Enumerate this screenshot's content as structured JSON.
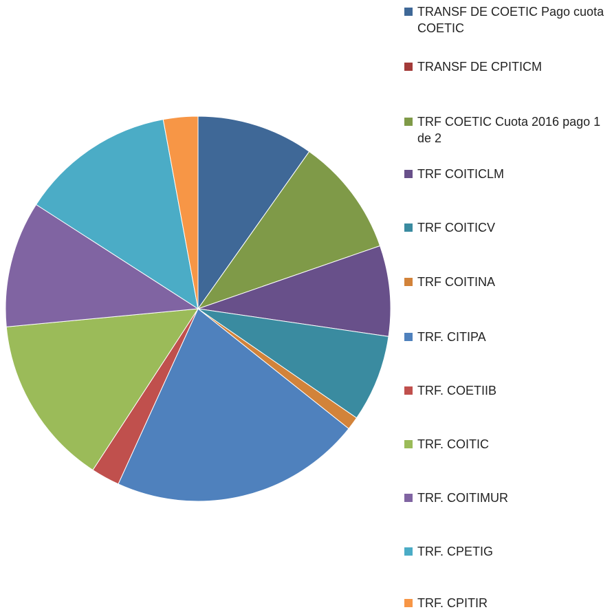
{
  "chart_data": {
    "type": "pie",
    "categories": [
      "TRANSF DE COETIC Pago cuota COETIC",
      "TRANSF DE CPITICM",
      "TRF COETIC Cuota 2016 pago 1 de 2",
      "TRF COITICLM",
      "TRF COITICV",
      "TRF COITINA",
      "TRF. CITIPA",
      "TRF. COETIIB",
      "TRF. COITIC",
      "TRF. COITIMUR",
      "TRF. CPETIG",
      "TRF. CPITIR"
    ],
    "values": [
      9.8,
      0,
      9.9,
      7.6,
      7.3,
      1.1,
      21.1,
      2.4,
      14.3,
      10.6,
      13.0,
      2.9
    ],
    "colors": [
      "#3f6897",
      "#a33b39",
      "#7f9a48",
      "#68508a",
      "#3a8ba0",
      "#d2833a",
      "#4f81bd",
      "#c0504d",
      "#9bbb59",
      "#8064a2",
      "#4bacc6",
      "#f79646"
    ],
    "legend": "right"
  }
}
